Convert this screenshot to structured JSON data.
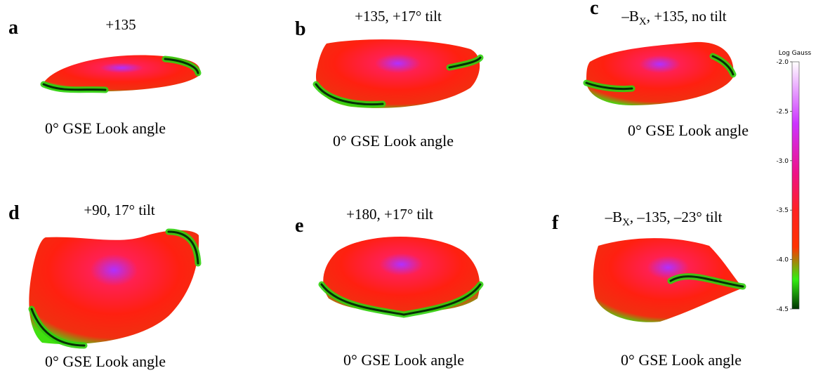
{
  "panels": [
    {
      "label": "a",
      "title": "+135",
      "caption": "0°  GSE Look angle"
    },
    {
      "label": "b",
      "title": "+135,  +17° tilt",
      "caption": "0°  GSE Look angle"
    },
    {
      "label": "c",
      "title": {
        "prefix": "–B",
        "sub": "X",
        "rest": ", +135, no tilt"
      },
      "caption": "0°  GSE Look angle"
    },
    {
      "label": "d",
      "title": "+90,  17° tilt",
      "caption": "0°  GSE Look angle"
    },
    {
      "label": "e",
      "title": "+180,  +17° tilt",
      "caption": "0°  GSE Look angle"
    },
    {
      "label": "f",
      "title": {
        "prefix": "–B",
        "sub": "X",
        "rest": ", –135, –23° tilt"
      },
      "caption": "0°  GSE Look angle"
    }
  ],
  "colorbar": {
    "title": "Log Gauss",
    "ticks": [
      {
        "value": -2,
        "label": "-2.0"
      },
      {
        "value": -2.5,
        "label": "-2.5"
      },
      {
        "value": -3,
        "label": "-3.0"
      },
      {
        "value": -3.5,
        "label": "-3.5"
      },
      {
        "value": -4,
        "label": "-4.0"
      },
      {
        "value": -4.5,
        "label": "-4.5"
      }
    ]
  }
}
